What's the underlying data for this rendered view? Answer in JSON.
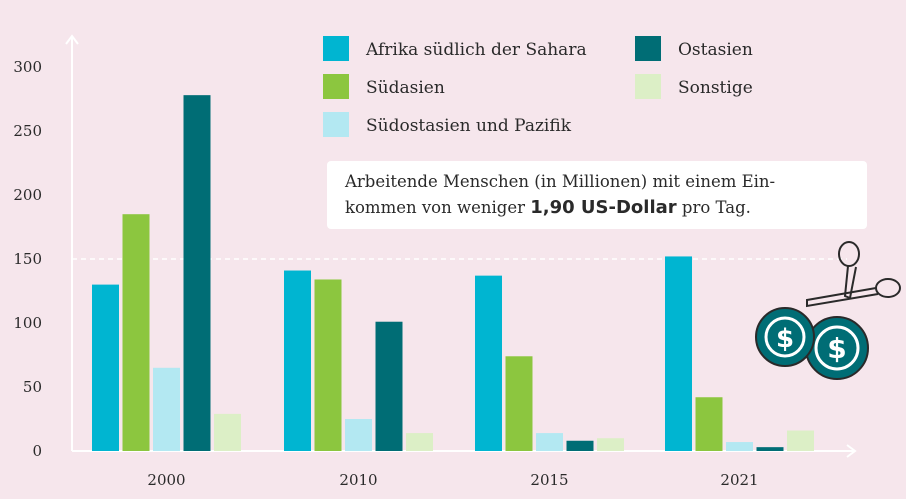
{
  "chart_data": {
    "type": "bar",
    "categories": [
      "2000",
      "2010",
      "2015",
      "2021"
    ],
    "series": [
      {
        "name": "Afrika südlich der Sahara",
        "color": "#00b5d1",
        "values": [
          130,
          141,
          137,
          152
        ]
      },
      {
        "name": "Südasien",
        "color": "#8cc63f",
        "values": [
          185,
          134,
          74,
          42
        ]
      },
      {
        "name": "Südostasien und Pazifik",
        "color": "#b3e8f2",
        "values": [
          65,
          25,
          14,
          7
        ]
      },
      {
        "name": "Ostasien",
        "color": "#006d75",
        "values": [
          278,
          101,
          8,
          3
        ]
      },
      {
        "name": "Sonstige",
        "color": "#dcefc6",
        "values": [
          29,
          14,
          10,
          16
        ]
      }
    ],
    "yticks": [
      0,
      50,
      100,
      150,
      200,
      250,
      300
    ],
    "ylim": [
      0,
      330
    ],
    "reference_line": 150,
    "legend_position": "top-right"
  },
  "note": {
    "line1": "Arbeitende Menschen (in Millionen) mit einem Ein-",
    "line2_pre": "kommen von weniger ",
    "line2_bold": "1,90 US-Dollar",
    "line2_post": " pro Tag."
  },
  "icon": {
    "name": "scissors-cutting-dollar-coins",
    "coin_symbol": "$",
    "coin_color": "#006d75"
  }
}
